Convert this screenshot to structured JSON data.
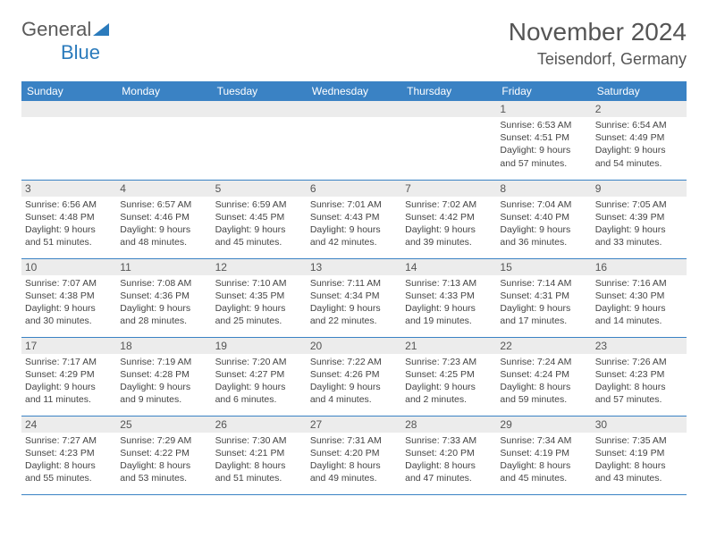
{
  "logo": {
    "part1": "General",
    "part2": "Blue",
    "triangle_color": "#2b7bbc"
  },
  "title": "November 2024",
  "location": "Teisendorf, Germany",
  "header_bg": "#3a82c4",
  "daynum_bg": "#ececec",
  "weekdays": [
    "Sunday",
    "Monday",
    "Tuesday",
    "Wednesday",
    "Thursday",
    "Friday",
    "Saturday"
  ],
  "weeks": [
    [
      null,
      null,
      null,
      null,
      null,
      {
        "n": "1",
        "sr": "6:53 AM",
        "ss": "4:51 PM",
        "dl": "9 hours and 57 minutes."
      },
      {
        "n": "2",
        "sr": "6:54 AM",
        "ss": "4:49 PM",
        "dl": "9 hours and 54 minutes."
      }
    ],
    [
      {
        "n": "3",
        "sr": "6:56 AM",
        "ss": "4:48 PM",
        "dl": "9 hours and 51 minutes."
      },
      {
        "n": "4",
        "sr": "6:57 AM",
        "ss": "4:46 PM",
        "dl": "9 hours and 48 minutes."
      },
      {
        "n": "5",
        "sr": "6:59 AM",
        "ss": "4:45 PM",
        "dl": "9 hours and 45 minutes."
      },
      {
        "n": "6",
        "sr": "7:01 AM",
        "ss": "4:43 PM",
        "dl": "9 hours and 42 minutes."
      },
      {
        "n": "7",
        "sr": "7:02 AM",
        "ss": "4:42 PM",
        "dl": "9 hours and 39 minutes."
      },
      {
        "n": "8",
        "sr": "7:04 AM",
        "ss": "4:40 PM",
        "dl": "9 hours and 36 minutes."
      },
      {
        "n": "9",
        "sr": "7:05 AM",
        "ss": "4:39 PM",
        "dl": "9 hours and 33 minutes."
      }
    ],
    [
      {
        "n": "10",
        "sr": "7:07 AM",
        "ss": "4:38 PM",
        "dl": "9 hours and 30 minutes."
      },
      {
        "n": "11",
        "sr": "7:08 AM",
        "ss": "4:36 PM",
        "dl": "9 hours and 28 minutes."
      },
      {
        "n": "12",
        "sr": "7:10 AM",
        "ss": "4:35 PM",
        "dl": "9 hours and 25 minutes."
      },
      {
        "n": "13",
        "sr": "7:11 AM",
        "ss": "4:34 PM",
        "dl": "9 hours and 22 minutes."
      },
      {
        "n": "14",
        "sr": "7:13 AM",
        "ss": "4:33 PM",
        "dl": "9 hours and 19 minutes."
      },
      {
        "n": "15",
        "sr": "7:14 AM",
        "ss": "4:31 PM",
        "dl": "9 hours and 17 minutes."
      },
      {
        "n": "16",
        "sr": "7:16 AM",
        "ss": "4:30 PM",
        "dl": "9 hours and 14 minutes."
      }
    ],
    [
      {
        "n": "17",
        "sr": "7:17 AM",
        "ss": "4:29 PM",
        "dl": "9 hours and 11 minutes."
      },
      {
        "n": "18",
        "sr": "7:19 AM",
        "ss": "4:28 PM",
        "dl": "9 hours and 9 minutes."
      },
      {
        "n": "19",
        "sr": "7:20 AM",
        "ss": "4:27 PM",
        "dl": "9 hours and 6 minutes."
      },
      {
        "n": "20",
        "sr": "7:22 AM",
        "ss": "4:26 PM",
        "dl": "9 hours and 4 minutes."
      },
      {
        "n": "21",
        "sr": "7:23 AM",
        "ss": "4:25 PM",
        "dl": "9 hours and 2 minutes."
      },
      {
        "n": "22",
        "sr": "7:24 AM",
        "ss": "4:24 PM",
        "dl": "8 hours and 59 minutes."
      },
      {
        "n": "23",
        "sr": "7:26 AM",
        "ss": "4:23 PM",
        "dl": "8 hours and 57 minutes."
      }
    ],
    [
      {
        "n": "24",
        "sr": "7:27 AM",
        "ss": "4:23 PM",
        "dl": "8 hours and 55 minutes."
      },
      {
        "n": "25",
        "sr": "7:29 AM",
        "ss": "4:22 PM",
        "dl": "8 hours and 53 minutes."
      },
      {
        "n": "26",
        "sr": "7:30 AM",
        "ss": "4:21 PM",
        "dl": "8 hours and 51 minutes."
      },
      {
        "n": "27",
        "sr": "7:31 AM",
        "ss": "4:20 PM",
        "dl": "8 hours and 49 minutes."
      },
      {
        "n": "28",
        "sr": "7:33 AM",
        "ss": "4:20 PM",
        "dl": "8 hours and 47 minutes."
      },
      {
        "n": "29",
        "sr": "7:34 AM",
        "ss": "4:19 PM",
        "dl": "8 hours and 45 minutes."
      },
      {
        "n": "30",
        "sr": "7:35 AM",
        "ss": "4:19 PM",
        "dl": "8 hours and 43 minutes."
      }
    ]
  ],
  "labels": {
    "sunrise": "Sunrise:",
    "sunset": "Sunset:",
    "daylight": "Daylight:"
  }
}
